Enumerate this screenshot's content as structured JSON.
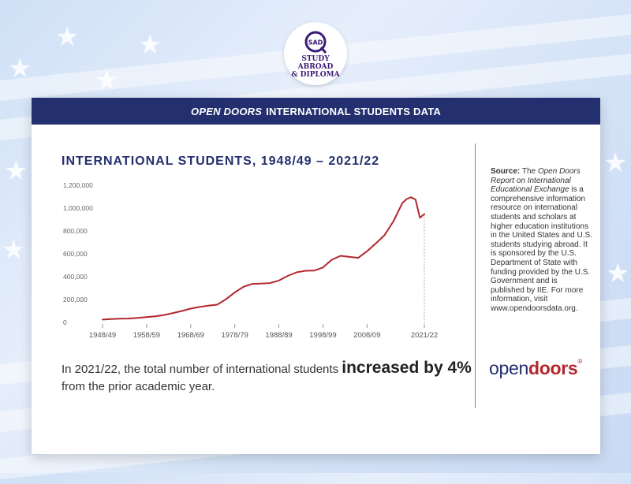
{
  "brand": {
    "logo_mark": "SAD",
    "logo_line1": "STUDY ABROAD",
    "logo_line2": "& DIPLOMA"
  },
  "card": {
    "header_italic": "OPEN DOORS",
    "header_rest": "INTERNATIONAL STUDENTS DATA"
  },
  "summary": {
    "prefix": "In 2021/22, the total number of international students ",
    "emphasis": "increased by 4%",
    "suffix": " from the prior academic year."
  },
  "source": {
    "label": "Source:",
    "the": " The ",
    "report_title": "Open Doors Report on International Educational Exchange",
    "body": " is a comprehensive information resource on international students and scholars at higher education institutions in the United States and U.S. students studying abroad. It is sponsored by the U.S. Department of State with funding provided by the U.S. Government and is published by IIE. For more information, visit www.opendoorsdata.org."
  },
  "opendoors_logo": {
    "open": "open",
    "doors": "doors",
    "reg": "®"
  },
  "colors": {
    "navy": "#232f6e",
    "line": "#b3262d",
    "accent_red": "#b3262d"
  },
  "chart_data": {
    "type": "line",
    "title": "INTERNATIONAL STUDENTS, 1948/49 – 2021/22",
    "xlabel": "",
    "ylabel": "",
    "x_ticks": [
      "1948/49",
      "1958/59",
      "1968/69",
      "1978/79",
      "1988/89",
      "1998/99",
      "2008/09",
      "2021/22"
    ],
    "x_tick_years": [
      1948,
      1958,
      1968,
      1978,
      1988,
      1998,
      2008,
      2021
    ],
    "y_ticks": [
      0,
      200000,
      400000,
      600000,
      800000,
      1000000,
      1200000
    ],
    "y_tick_labels": [
      "0",
      "200,000",
      "400,000",
      "600,000",
      "800,000",
      "1,000,000",
      "1,200,000"
    ],
    "xlim": [
      1948,
      2021
    ],
    "ylim": [
      0,
      1200000
    ],
    "grid": false,
    "series": [
      {
        "x": [
          1948,
          1950,
          1952,
          1954,
          1956,
          1958,
          1960,
          1962,
          1964,
          1966,
          1968,
          1970,
          1972,
          1974,
          1976,
          1978,
          1980,
          1982,
          1984,
          1986,
          1988,
          1990,
          1992,
          1994,
          1996,
          1998,
          2000,
          2002,
          2004,
          2006,
          2008,
          2010,
          2012,
          2014,
          2016,
          2017,
          2018,
          2019,
          2020,
          2021
        ],
        "y": [
          25000,
          30000,
          33000,
          34000,
          40000,
          47000,
          53000,
          65000,
          82000,
          100000,
          121000,
          135000,
          146000,
          155000,
          203000,
          263000,
          312000,
          337000,
          339000,
          344000,
          366000,
          407000,
          438000,
          452000,
          453000,
          481000,
          548000,
          583000,
          573000,
          565000,
          623000,
          691000,
          765000,
          886000,
          1044000,
          1079000,
          1095000,
          1075000,
          915000,
          948000
        ]
      }
    ]
  }
}
